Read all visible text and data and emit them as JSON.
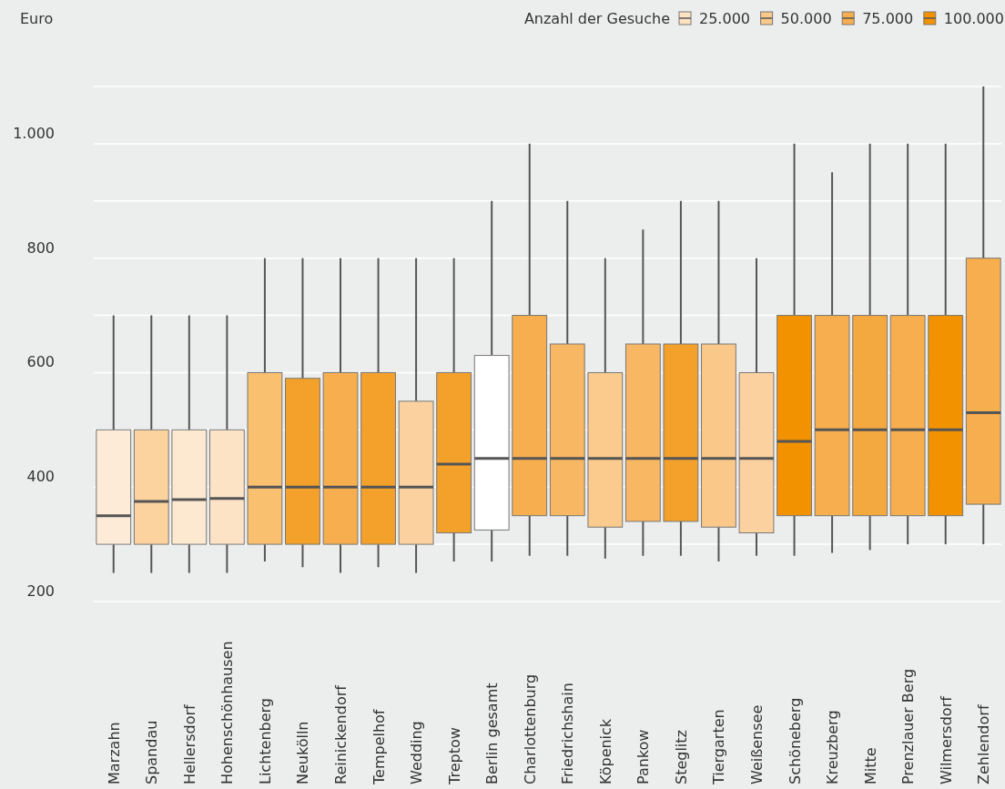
{
  "chart_data": {
    "type": "box",
    "ylabel": "Euro",
    "legend_title": "Anzahl der Gesuche",
    "legend": "top right",
    "grid": "y",
    "categories": [
      "Marzahn",
      "Spandau",
      "Hellersdorf",
      "Hohenschönhausen",
      "Lichtenberg",
      "Neukölln",
      "Reinickendorf",
      "Tempelhof",
      "Wedding",
      "Treptow",
      "Berlin gesamt",
      "Charlottenburg",
      "Friedrichshain",
      "Köpenick",
      "Pankow",
      "Steglitz",
      "Tiergarten",
      "Weißensee",
      "Schöneberg",
      "Kreuzberg",
      "Mitte",
      "Prenzlauer Berg",
      "Wilmersdorf",
      "Zehlendorf"
    ],
    "ylim": [
      200,
      1100
    ],
    "yticks": [
      200,
      {
        "value": 300,
        "label": null
      },
      400,
      {
        "value": 500,
        "label": null
      },
      600,
      {
        "value": 700,
        "label": null
      },
      800,
      {
        "value": 900,
        "label": null
      },
      {
        "value": 1000,
        "label": "1.000"
      },
      {
        "value": 1100,
        "label": null
      }
    ],
    "series": [
      {
        "name": "25.000",
        "color": "#fde3c2",
        "colors": [
          "#fdebd7",
          null,
          "#fde8d0",
          "#fde3c6",
          null,
          null,
          null,
          null,
          null,
          null,
          null,
          null,
          null,
          null,
          null,
          null,
          null,
          null,
          null,
          null,
          null,
          null,
          null,
          null
        ],
        "boxes": [
          {
            "low": 250,
            "q1": 300,
            "median": 350,
            "q3": 500,
            "high": 700
          },
          null,
          {
            "low": 250,
            "q1": 300,
            "median": 378,
            "q3": 500,
            "high": 700
          },
          {
            "low": 250,
            "q1": 300,
            "median": 380,
            "q3": 500,
            "high": 700
          },
          null,
          null,
          null,
          null,
          null,
          null,
          null,
          null,
          null,
          null,
          null,
          null,
          null,
          null,
          null,
          null,
          null,
          null,
          null,
          null
        ]
      },
      {
        "name": "50.000",
        "color": "#fbc98a",
        "colors": [
          null,
          "#fcd29e",
          null,
          null,
          "#f9c070",
          null,
          null,
          null,
          "#fbd29f",
          null,
          null,
          null,
          "#f8b762",
          "#facb8c",
          "#f8b762",
          null,
          "#fac98a",
          "#fbd29f",
          null,
          null,
          null,
          null,
          null,
          null
        ],
        "boxes": [
          null,
          {
            "low": 250,
            "q1": 300,
            "median": 375,
            "q3": 500,
            "high": 700
          },
          null,
          null,
          {
            "low": 270,
            "q1": 300,
            "median": 400,
            "q3": 600,
            "high": 800
          },
          null,
          null,
          null,
          {
            "low": 250,
            "q1": 300,
            "median": 400,
            "q3": 550,
            "high": 800
          },
          null,
          null,
          null,
          {
            "low": 280,
            "q1": 350,
            "median": 450,
            "q3": 650,
            "high": 900
          },
          {
            "low": 275,
            "q1": 330,
            "median": 450,
            "q3": 600,
            "high": 800
          },
          {
            "low": 280,
            "q1": 340,
            "median": 450,
            "q3": 650,
            "high": 850
          },
          null,
          {
            "low": 270,
            "q1": 330,
            "median": 450,
            "q3": 650,
            "high": 900
          },
          {
            "low": 280,
            "q1": 320,
            "median": 450,
            "q3": 600,
            "high": 800
          },
          null,
          null,
          null,
          null,
          null,
          null
        ]
      },
      {
        "name": "75.000",
        "color": "#f7ae4f",
        "colors": [
          null,
          null,
          null,
          null,
          null,
          "#f4a12c",
          "#f6ae4e",
          "#f4a12c",
          null,
          "#f4a12c",
          null,
          "#f6ae4e",
          null,
          null,
          null,
          "#f4a12c",
          null,
          null,
          null,
          "#f6ae4e",
          "#f4a940",
          "#f6ae4e",
          null,
          "#f6ae4e"
        ],
        "boxes": [
          null,
          null,
          null,
          null,
          null,
          {
            "low": 260,
            "q1": 300,
            "median": 400,
            "q3": 590,
            "high": 800
          },
          {
            "low": 250,
            "q1": 300,
            "median": 400,
            "q3": 600,
            "high": 800
          },
          {
            "low": 260,
            "q1": 300,
            "median": 400,
            "q3": 600,
            "high": 800
          },
          null,
          {
            "low": 270,
            "q1": 320,
            "median": 440,
            "q3": 600,
            "high": 800
          },
          null,
          {
            "low": 280,
            "q1": 350,
            "median": 450,
            "q3": 700,
            "high": 1000
          },
          null,
          null,
          null,
          {
            "low": 280,
            "q1": 340,
            "median": 450,
            "q3": 650,
            "high": 900
          },
          null,
          null,
          null,
          {
            "low": 285,
            "q1": 350,
            "median": 500,
            "q3": 700,
            "high": 950
          },
          {
            "low": 290,
            "q1": 350,
            "median": 500,
            "q3": 700,
            "high": 1000
          },
          {
            "low": 300,
            "q1": 350,
            "median": 500,
            "q3": 700,
            "high": 1000
          },
          null,
          {
            "low": 300,
            "q1": 370,
            "median": 530,
            "q3": 800,
            "high": 1100
          }
        ]
      },
      {
        "name": "100.000",
        "color": "#f39200",
        "colors": [
          null,
          null,
          null,
          null,
          null,
          null,
          null,
          null,
          null,
          null,
          null,
          null,
          null,
          null,
          null,
          null,
          null,
          null,
          "#f29200",
          null,
          null,
          null,
          "#f29200",
          null
        ],
        "boxes": [
          null,
          null,
          null,
          null,
          null,
          null,
          null,
          null,
          null,
          null,
          null,
          null,
          null,
          null,
          null,
          null,
          null,
          null,
          {
            "low": 280,
            "q1": 350,
            "median": 480,
            "q3": 700,
            "high": 1000
          },
          null,
          null,
          null,
          {
            "low": 300,
            "q1": 350,
            "median": 500,
            "q3": 700,
            "high": 1000
          },
          null
        ]
      },
      {
        "color": "#ffffff",
        "boxes": [
          null,
          null,
          null,
          null,
          null,
          null,
          null,
          null,
          null,
          null,
          {
            "low": 270,
            "q1": 325,
            "median": 450,
            "q3": 630,
            "high": 900
          },
          null,
          null,
          null,
          null,
          null,
          null,
          null,
          null,
          null,
          null,
          null,
          null,
          null
        ]
      }
    ]
  }
}
